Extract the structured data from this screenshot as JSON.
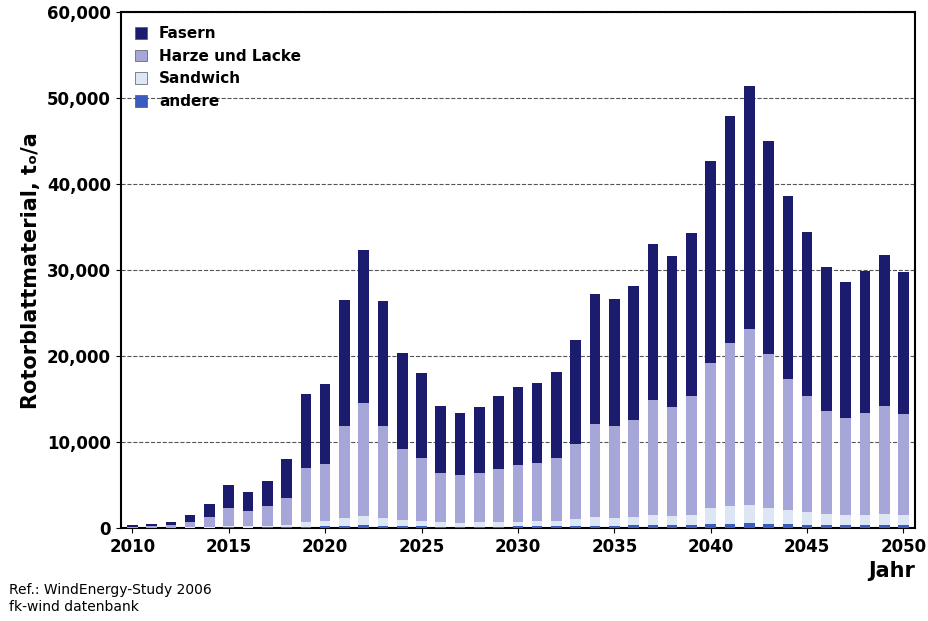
{
  "chart_data": {
    "type": "bar",
    "stacked": true,
    "grid": true,
    "legend": "upper left",
    "y_label": "Rotorblattmaterial, tₒ/a",
    "x_label": "Jahr",
    "source": [
      "Ref.: WindEnergy-Study 2006",
      "fk-wind datenbank"
    ],
    "x": [
      2010,
      2011,
      2012,
      2013,
      2014,
      2015,
      2016,
      2017,
      2018,
      2019,
      2020,
      2021,
      2022,
      2023,
      2024,
      2025,
      2026,
      2027,
      2028,
      2029,
      2030,
      2031,
      2032,
      2033,
      2034,
      2035,
      2036,
      2037,
      2038,
      2039,
      2040,
      2041,
      2042,
      2043,
      2044,
      2045,
      2046,
      2047,
      2048,
      2049,
      2050
    ],
    "xlim": [
      2009.4,
      2050.6
    ],
    "xticks": [
      2010,
      2015,
      2020,
      2025,
      2030,
      2035,
      2040,
      2045,
      2050
    ],
    "ylim": [
      0,
      60000
    ],
    "yticks": [
      0,
      {
        "value": 10000,
        "label": "10,000"
      },
      {
        "value": 20000,
        "label": "20,000"
      },
      {
        "value": 30000,
        "label": "30,000"
      },
      {
        "value": 40000,
        "label": "40,000"
      },
      {
        "value": 50000,
        "label": "50,000"
      },
      {
        "value": 60000,
        "label": "60,000"
      }
    ],
    "series": [
      {
        "name": "andere",
        "color": "#3b5bbf",
        "values": [
          5,
          5,
          10,
          20,
          30,
          50,
          40,
          50,
          80,
          150,
          160,
          260,
          320,
          260,
          200,
          180,
          140,
          130,
          140,
          150,
          160,
          170,
          180,
          220,
          270,
          260,
          280,
          330,
          310,
          340,
          430,
          480,
          510,
          450,
          390,
          340,
          300,
          290,
          300,
          320,
          300
        ]
      },
      {
        "name": "Sandwich",
        "color": "#dde6f5",
        "values": [
          10,
          15,
          25,
          50,
          100,
          180,
          150,
          190,
          280,
          550,
          580,
          900,
          1100,
          900,
          700,
          620,
          500,
          470,
          490,
          540,
          570,
          590,
          640,
          770,
          950,
          930,
          980,
          1150,
          1100,
          1200,
          1900,
          2100,
          2200,
          1900,
          1650,
          1450,
          1280,
          1200,
          1250,
          1340,
          1250
        ]
      },
      {
        "name": "Harze und Lacke",
        "color": "#a6a6d8",
        "values": [
          115,
          160,
          265,
          630,
          1170,
          2070,
          1810,
          2260,
          3140,
          6300,
          6660,
          10640,
          13080,
          10640,
          8300,
          7300,
          5760,
          5500,
          5770,
          6210,
          6570,
          6740,
          7280,
          8810,
          10880,
          10610,
          11340,
          13420,
          12690,
          13760,
          16870,
          18920,
          20390,
          17850,
          15260,
          13610,
          12020,
          11310,
          11850,
          12540,
          11750
        ]
      },
      {
        "name": "Fasern",
        "color": "#1c1c6e",
        "values": [
          170,
          220,
          400,
          800,
          1500,
          2700,
          2200,
          2900,
          4500,
          8600,
          9300,
          14700,
          17900,
          14600,
          11100,
          9900,
          7800,
          7300,
          7700,
          8500,
          9100,
          9400,
          10100,
          12100,
          15100,
          14800,
          15500,
          18100,
          17500,
          19000,
          23500,
          26400,
          28300,
          24800,
          21300,
          19000,
          16800,
          15800,
          16500,
          17600,
          16500
        ]
      }
    ]
  }
}
